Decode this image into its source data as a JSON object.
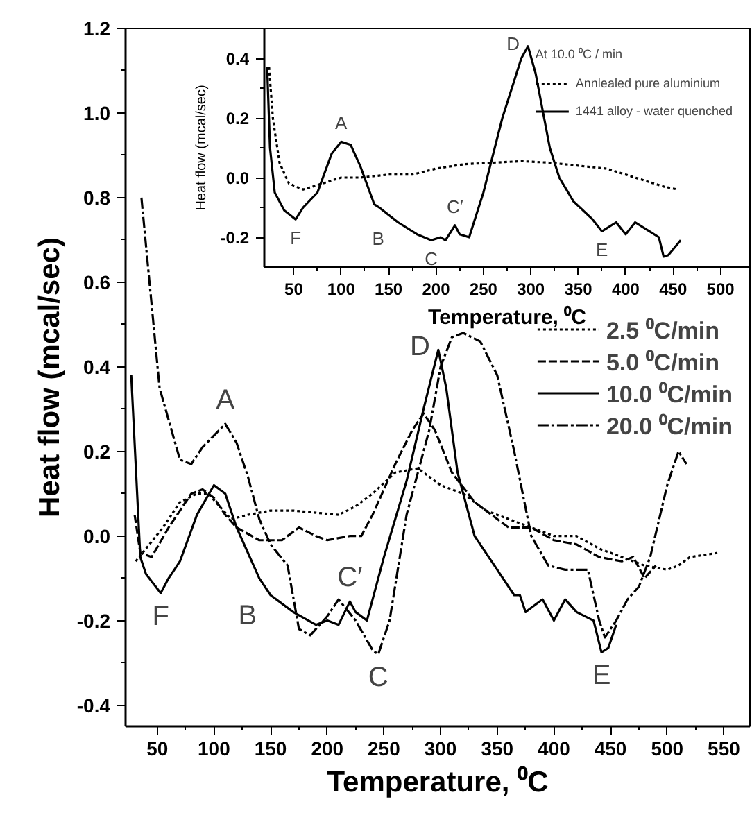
{
  "chart_data": [
    {
      "type": "line",
      "xlabel": "Temperature, ⁰C",
      "ylabel": "Heat flow (mcal/sec)",
      "xlim": [
        22,
        573
      ],
      "ylim": [
        -0.45,
        1.2
      ],
      "xticks": [
        50,
        100,
        150,
        200,
        250,
        300,
        350,
        400,
        450,
        500,
        550
      ],
      "yticks": [
        {
          "value": -0.4,
          "label": "-0.4"
        },
        {
          "value": -0.2,
          "label": "-0.2"
        },
        {
          "value": 0,
          "label": "0.0"
        },
        {
          "value": 0.2,
          "label": "0.2"
        },
        {
          "value": 0.4,
          "label": "0.4"
        },
        {
          "value": 0.6,
          "label": "0.6"
        },
        {
          "value": 0.8,
          "label": "0.8"
        },
        {
          "value": 1.0,
          "label": "1.0"
        },
        {
          "value": 1.2,
          "label": "1.2"
        }
      ],
      "grid": false,
      "legend": "right",
      "series": [
        {
          "name": "2.5 ⁰C/min",
          "color": "#000000",
          "line_style": "dotted",
          "x": [
            31,
            40,
            55,
            70,
            85,
            95,
            105,
            115,
            130,
            150,
            170,
            190,
            210,
            225,
            240,
            260,
            280,
            300,
            320,
            340,
            360,
            380,
            400,
            420,
            440,
            460,
            480,
            500,
            510,
            520,
            545
          ],
          "values": [
            -0.06,
            -0.03,
            0.02,
            0.08,
            0.1,
            0.1,
            0.07,
            0.04,
            0.05,
            0.06,
            0.06,
            0.055,
            0.05,
            0.07,
            0.1,
            0.15,
            0.16,
            0.12,
            0.1,
            0.06,
            0.04,
            0.02,
            0.0,
            0.0,
            -0.03,
            -0.05,
            -0.07,
            -0.08,
            -0.07,
            -0.05,
            -0.04
          ]
        },
        {
          "name": "5.0 ⁰C/min",
          "color": "#000000",
          "line_style": "dashed",
          "x": [
            30,
            35,
            45,
            60,
            80,
            90,
            100,
            110,
            120,
            140,
            150,
            160,
            175,
            190,
            200,
            220,
            230,
            240,
            260,
            275,
            285,
            295,
            310,
            330,
            350,
            360,
            380,
            400,
            420,
            440,
            460,
            470,
            480,
            490
          ],
          "values": [
            0.05,
            -0.04,
            -0.05,
            0.02,
            0.1,
            0.11,
            0.09,
            0.05,
            0.02,
            -0.01,
            -0.01,
            -0.01,
            0.02,
            0.0,
            -0.01,
            0.0,
            0.0,
            0.05,
            0.17,
            0.25,
            0.29,
            0.25,
            0.15,
            0.08,
            0.04,
            0.02,
            0.02,
            -0.01,
            -0.02,
            -0.05,
            -0.06,
            -0.05,
            -0.1,
            -0.07
          ]
        },
        {
          "name": "10.0 ⁰C/min",
          "color": "#000000",
          "line_style": "solid",
          "x": [
            27,
            35,
            40,
            53,
            60,
            70,
            85,
            100,
            110,
            120,
            130,
            140,
            150,
            170,
            190,
            200,
            210,
            220,
            225,
            235,
            250,
            270,
            285,
            298,
            305,
            315,
            330,
            350,
            365,
            370,
            375,
            390,
            400,
            410,
            420,
            435,
            442,
            448,
            455
          ],
          "values": [
            0.38,
            -0.05,
            -0.09,
            -0.135,
            -0.1,
            -0.06,
            0.05,
            0.12,
            0.1,
            0.02,
            -0.04,
            -0.1,
            -0.14,
            -0.18,
            -0.21,
            -0.2,
            -0.21,
            -0.155,
            -0.18,
            -0.2,
            -0.05,
            0.13,
            0.3,
            0.44,
            0.35,
            0.15,
            0.0,
            -0.08,
            -0.14,
            -0.14,
            -0.18,
            -0.15,
            -0.2,
            -0.15,
            -0.18,
            -0.2,
            -0.275,
            -0.265,
            -0.21
          ]
        },
        {
          "name": "20.0 ⁰C/min",
          "color": "#000000",
          "line_style": "dashdot",
          "x": [
            36,
            52,
            70,
            80,
            90,
            110,
            120,
            130,
            140,
            150,
            165,
            175,
            185,
            200,
            210,
            225,
            240,
            245,
            255,
            270,
            290,
            300,
            310,
            320,
            335,
            350,
            365,
            380,
            395,
            410,
            430,
            440,
            445,
            455,
            465,
            475,
            485,
            500,
            510,
            517
          ],
          "values": [
            0.8,
            0.35,
            0.18,
            0.17,
            0.21,
            0.265,
            0.22,
            0.14,
            0.04,
            -0.02,
            -0.07,
            -0.22,
            -0.235,
            -0.19,
            -0.15,
            -0.2,
            -0.27,
            -0.28,
            -0.2,
            0.05,
            0.25,
            0.4,
            0.47,
            0.48,
            0.46,
            0.38,
            0.2,
            0.0,
            -0.07,
            -0.08,
            -0.08,
            -0.2,
            -0.24,
            -0.2,
            -0.15,
            -0.12,
            -0.05,
            0.12,
            0.2,
            0.17
          ]
        }
      ],
      "annotations": [
        {
          "text": "A",
          "x": 110,
          "y": 0.265
        },
        {
          "text": "F",
          "x": 53,
          "y": -0.135
        },
        {
          "text": "B",
          "x": 150,
          "y": -0.14
        },
        {
          "text": "C′",
          "x": 220,
          "y": -0.155
        },
        {
          "text": "C",
          "x": 245,
          "y": -0.28
        },
        {
          "text": "D",
          "x": 298,
          "y": 0.44
        },
        {
          "text": "E",
          "x": 442,
          "y": -0.275
        }
      ]
    },
    {
      "type": "line",
      "xlabel": "Temperature, ⁰C",
      "ylabel": "Heat flow (mcal/sec)",
      "xlim": [
        19,
        531
      ],
      "ylim": [
        -0.3,
        0.5
      ],
      "xticks": [
        50,
        100,
        150,
        200,
        250,
        300,
        350,
        400,
        450,
        500
      ],
      "yticks": [
        {
          "value": -0.2,
          "label": "-0.2"
        },
        {
          "value": 0,
          "label": "0.0"
        },
        {
          "value": 0.2,
          "label": "0.2"
        },
        {
          "value": 0.4,
          "label": "0.4"
        }
      ],
      "grid": false,
      "legend": "top right",
      "legend_title": "At 10.0 ⁰C / min",
      "series": [
        {
          "name": "Annlealed pure aluminium",
          "color": "#000000",
          "line_style": "dotted",
          "x": [
            24,
            28,
            35,
            45,
            60,
            80,
            100,
            120,
            150,
            175,
            200,
            230,
            260,
            290,
            320,
            350,
            380,
            410,
            440,
            455
          ],
          "values": [
            0.37,
            0.2,
            0.05,
            -0.02,
            -0.04,
            -0.02,
            0.0,
            0.0,
            0.01,
            0.01,
            0.03,
            0.045,
            0.05,
            0.055,
            0.05,
            0.04,
            0.03,
            0.0,
            -0.03,
            -0.04
          ]
        },
        {
          "name": "1441 alloy - water quenched",
          "color": "#000000",
          "line_style": "solid",
          "x": [
            22,
            25,
            30,
            40,
            52,
            60,
            75,
            90,
            100,
            110,
            120,
            135,
            140,
            160,
            180,
            195,
            205,
            210,
            220,
            225,
            235,
            250,
            270,
            290,
            297,
            305,
            320,
            330,
            345,
            365,
            375,
            390,
            400,
            410,
            425,
            435,
            440,
            445,
            458
          ],
          "values": [
            0.37,
            0.1,
            -0.05,
            -0.11,
            -0.14,
            -0.1,
            -0.05,
            0.08,
            0.12,
            0.11,
            0.04,
            -0.09,
            -0.1,
            -0.15,
            -0.19,
            -0.21,
            -0.2,
            -0.21,
            -0.16,
            -0.19,
            -0.2,
            -0.05,
            0.2,
            0.4,
            0.44,
            0.35,
            0.1,
            0.0,
            -0.08,
            -0.14,
            -0.18,
            -0.15,
            -0.19,
            -0.15,
            -0.18,
            -0.2,
            -0.265,
            -0.26,
            -0.21
          ]
        }
      ],
      "annotations": [
        {
          "text": "A",
          "x": 100,
          "y": 0.12
        },
        {
          "text": "B",
          "x": 160,
          "y": -0.15
        },
        {
          "text": "C",
          "x": 195,
          "y": -0.21
        },
        {
          "text": "C′",
          "x": 220,
          "y": -0.16
        },
        {
          "text": "D",
          "x": 297,
          "y": 0.44
        },
        {
          "text": "E",
          "x": 375,
          "y": -0.18
        },
        {
          "text": "F",
          "x": 52,
          "y": -0.14
        }
      ]
    }
  ]
}
